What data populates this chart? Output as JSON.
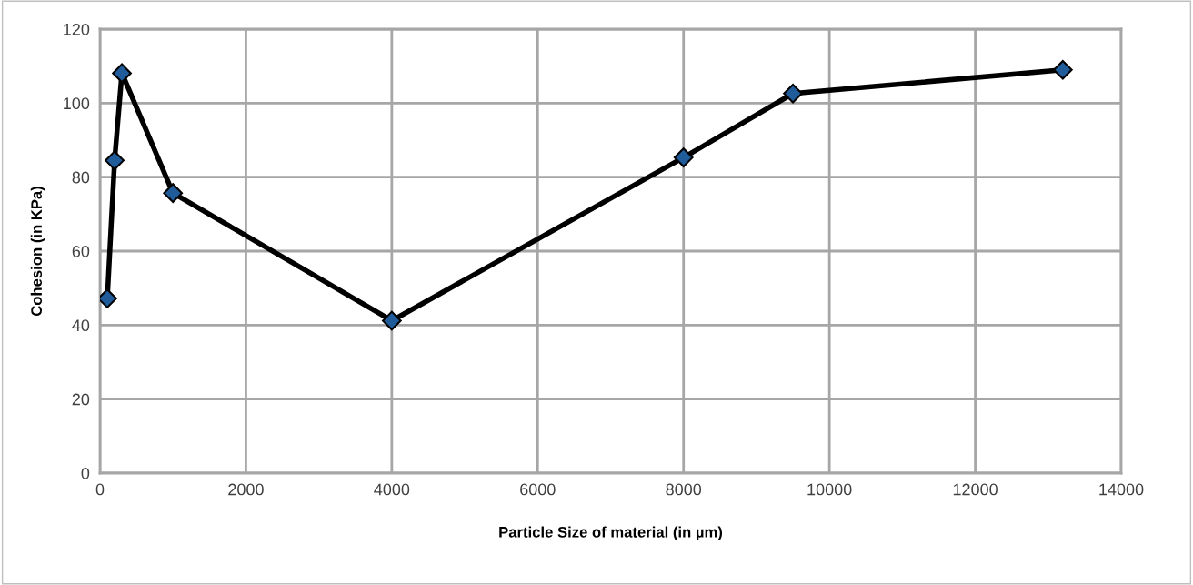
{
  "chart_data": {
    "type": "line",
    "xlabel": "Particle Size of material (in µm)",
    "ylabel": "Cohesion (in KPa)",
    "x": [
      100,
      200,
      300,
      1000,
      4000,
      8000,
      9500,
      13200
    ],
    "series": [
      {
        "color": "#1f5c99",
        "values": [
          47.2,
          84.5,
          108.1,
          75.7,
          41.2,
          85.3,
          102.6,
          109
        ]
      }
    ],
    "xlim": [
      0,
      14000
    ],
    "xticks": [
      0,
      2000,
      4000,
      6000,
      8000,
      10000,
      12000,
      14000
    ],
    "ylim": [
      0,
      120
    ],
    "yticks": [
      0,
      20,
      40,
      60,
      80,
      100,
      120
    ],
    "grid": true,
    "marker": "diamond",
    "line_style": "solid"
  }
}
